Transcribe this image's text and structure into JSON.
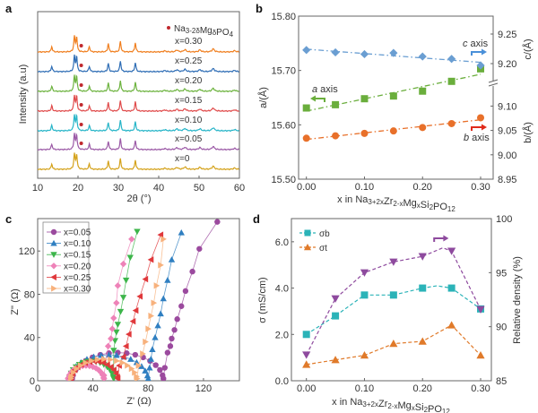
{
  "panels": {
    "a": "a",
    "b": "b",
    "c": "c",
    "d": "d"
  },
  "chart_data": [
    {
      "id": "a",
      "type": "line",
      "xlabel": "2θ (°)",
      "ylabel": "Intensity (a.u)",
      "xlim": [
        10,
        60
      ],
      "xticks": [
        10,
        20,
        30,
        40,
        50,
        60
      ],
      "legend_parts": [
        {
          "t": "Na"
        },
        {
          "t": "3-2δ",
          "sub": true
        },
        {
          "t": "Mg"
        },
        {
          "t": "δ",
          "sub": true
        },
        {
          "t": "PO"
        },
        {
          "t": "4",
          "sub": true
        }
      ],
      "impurity_marker_2theta": 20.8,
      "impurity_color": "#c0282d",
      "peaks": [
        [
          13.5,
          0.35
        ],
        [
          19.1,
          1.0
        ],
        [
          19.65,
          0.95
        ],
        [
          22.8,
          0.35
        ],
        [
          27.5,
          0.55
        ],
        [
          30.5,
          0.7
        ],
        [
          34.2,
          0.6
        ],
        [
          41.5,
          0.07
        ],
        [
          44.5,
          0.12
        ],
        [
          46.5,
          0.15
        ],
        [
          50.2,
          0.13
        ],
        [
          53.5,
          0.2
        ],
        [
          58.8,
          0.08
        ]
      ],
      "series": [
        {
          "name": "x=0.30",
          "color": "#f07f1f",
          "impurity": true
        },
        {
          "name": "x=0.25",
          "color": "#2e6db5",
          "impurity": true
        },
        {
          "name": "x=0.20",
          "color": "#6db33f",
          "impurity": true
        },
        {
          "name": "x=0.15",
          "color": "#e04b4b",
          "impurity": true
        },
        {
          "name": "x=0.10",
          "color": "#27b5c8",
          "impurity": true
        },
        {
          "name": "x=0.05",
          "color": "#9b59a6",
          "impurity": true
        },
        {
          "name": "x=0",
          "color": "#d4a21b",
          "impurity": false
        }
      ]
    },
    {
      "id": "b",
      "type": "scatter",
      "xlabel_parts": [
        {
          "t": "x in Na"
        },
        {
          "t": "3+2x",
          "sub": true
        },
        {
          "t": "Zr"
        },
        {
          "t": "2-x",
          "sub": true
        },
        {
          "t": "Mg"
        },
        {
          "t": "x",
          "sub": true
        },
        {
          "t": "Si"
        },
        {
          "t": "2",
          "sub": true
        },
        {
          "t": "PO"
        },
        {
          "t": "12",
          "sub": true
        }
      ],
      "ylabel_left": "a/(Å)",
      "ylabel_right_top": "c/(Å)",
      "ylabel_right_bottom": "b/(Å)",
      "x": [
        0,
        0.05,
        0.1,
        0.15,
        0.2,
        0.25,
        0.3
      ],
      "xticks": [
        "0.00",
        "0.10",
        "0.20",
        "0.30"
      ],
      "ylim_left": [
        15.5,
        15.8
      ],
      "yticks_left": [
        "15.50",
        "15.60",
        "15.70",
        "15.80"
      ],
      "yticks_right": [
        "8.95",
        "9.00",
        "9.05",
        "9.10",
        "9.20",
        "9.25"
      ],
      "series": [
        {
          "name": "a axis",
          "axis": "left",
          "color": "#6aae3c",
          "marker": "square",
          "values": [
            15.631,
            15.637,
            15.648,
            15.653,
            15.662,
            15.68,
            15.703
          ]
        },
        {
          "name": "b axis",
          "axis": "right-lower",
          "color": "#e8702a",
          "marker": "circle",
          "values": [
            9.034,
            9.039,
            9.044,
            9.049,
            9.056,
            9.064,
            9.076
          ]
        },
        {
          "name": "c axis",
          "axis": "right-upper",
          "color": "#6a9ed2",
          "marker": "diamond",
          "values": [
            9.223,
            9.219,
            9.216,
            9.218,
            9.212,
            9.208,
            9.197
          ]
        }
      ],
      "annotations": {
        "a": "a",
        "b": "b",
        "c": "c",
        "axis_word": " axis"
      },
      "arrow_colors": {
        "a": "#6aae3c",
        "b": "#e02a1a",
        "c": "#4a90d9"
      }
    },
    {
      "id": "c",
      "type": "scatter",
      "xlabel": "Z' (Ω)",
      "ylabel": "Z'' (Ω)",
      "xlim": [
        0,
        146
      ],
      "ylim": [
        0,
        150
      ],
      "xticks": [
        0,
        40,
        80,
        120
      ],
      "yticks": [
        0,
        40,
        80,
        120
      ],
      "series": [
        {
          "name": "x=0.05",
          "color": "#9b4a9e",
          "marker": "circle",
          "arc": [
            25,
            91,
            26
          ],
          "tail": [
            [
              92,
              12
            ],
            [
              94,
              26
            ],
            [
              96,
              32
            ],
            [
              97,
              39
            ],
            [
              99,
              47
            ],
            [
              101,
              57
            ],
            [
              104,
              69
            ],
            [
              107,
              83
            ],
            [
              112,
              101
            ],
            [
              117,
              122
            ],
            [
              130,
              147
            ]
          ]
        },
        {
          "name": "x=0.10",
          "color": "#2f7fc1",
          "marker": "tri-up",
          "arc": [
            23,
            80,
            24
          ],
          "tail": [
            [
              81,
              12
            ],
            [
              82,
              20
            ],
            [
              83,
              29
            ],
            [
              85,
              40
            ],
            [
              87,
              51
            ],
            [
              89,
              62
            ],
            [
              91,
              76
            ],
            [
              94,
              93
            ],
            [
              97,
              112
            ],
            [
              104,
              137
            ]
          ]
        },
        {
          "name": "x=0.15",
          "color": "#3cb54a",
          "marker": "tri-down",
          "arc": [
            23,
            55,
            18
          ],
          "tail": [
            [
              55,
              28
            ],
            [
              56,
              37
            ],
            [
              57,
              45
            ],
            [
              58,
              52
            ],
            [
              60,
              64
            ],
            [
              62,
              77
            ],
            [
              64,
              93
            ],
            [
              67,
              114
            ],
            [
              72,
              138
            ]
          ]
        },
        {
          "name": "x=0.20",
          "color": "#ee82b8",
          "marker": "diamond",
          "arc": [
            22,
            48,
            14
          ],
          "tail": [
            [
              48,
              5
            ],
            [
              51,
              32
            ],
            [
              53,
              39
            ],
            [
              54,
              48
            ],
            [
              55,
              58
            ],
            [
              57,
              72
            ],
            [
              58,
              88
            ],
            [
              62,
              108
            ],
            [
              68,
              131
            ]
          ]
        },
        {
          "name": "x=0.25",
          "color": "#e0383b",
          "marker": "tri-left",
          "arc": [
            24,
            58,
            18
          ],
          "tail": [
            [
              59,
              14
            ],
            [
              62,
              22
            ],
            [
              64,
              32
            ],
            [
              66,
              43
            ],
            [
              69,
              55
            ],
            [
              71,
              65
            ],
            [
              74,
              78
            ],
            [
              78,
              94
            ],
            [
              82,
              112
            ],
            [
              89,
              135
            ]
          ]
        },
        {
          "name": "x=0.30",
          "color": "#f7b17c",
          "marker": "tri-right",
          "arc": [
            24,
            72,
            20
          ],
          "tail": [
            [
              73,
              14
            ],
            [
              76,
              25
            ],
            [
              78,
              36
            ],
            [
              80,
              48
            ],
            [
              82,
              60
            ],
            [
              84,
              72
            ],
            [
              86,
              88
            ],
            [
              89,
              107
            ],
            [
              91,
              131
            ]
          ]
        }
      ]
    },
    {
      "id": "d",
      "type": "line",
      "xlabel_parts": [
        {
          "t": "x in Na"
        },
        {
          "t": "3+2x",
          "sub": true
        },
        {
          "t": "Zr"
        },
        {
          "t": "2-x",
          "sub": true
        },
        {
          "t": "Mg"
        },
        {
          "t": "x",
          "sub": true
        },
        {
          "t": "Si"
        },
        {
          "t": "2",
          "sub": true
        },
        {
          "t": "PO"
        },
        {
          "t": "12",
          "sub": true
        }
      ],
      "ylabel_left": "σ (mS/cm)",
      "ylabel_right": "Relative density (%)",
      "x": [
        0,
        0.05,
        0.1,
        0.15,
        0.2,
        0.25,
        0.3
      ],
      "xticks": [
        "0.00",
        "0.10",
        "0.20",
        "0.30"
      ],
      "ylim_left": [
        0,
        7
      ],
      "yticks_left": [
        "0.0",
        "2.0",
        "4.0",
        "6.0"
      ],
      "ylim_right": [
        85,
        100
      ],
      "yticks_right": [
        "85",
        "90",
        "95",
        "100"
      ],
      "series": [
        {
          "name": "σb",
          "axis": "left",
          "color": "#2bb3b8",
          "marker": "square",
          "values": [
            2.0,
            2.8,
            3.7,
            3.7,
            4.0,
            4.0,
            3.1
          ]
        },
        {
          "name": "σt",
          "axis": "left",
          "color": "#e07a2a",
          "marker": "tri-up",
          "values": [
            0.7,
            0.9,
            1.1,
            1.6,
            1.7,
            2.4,
            1.1
          ]
        },
        {
          "name": "Relative density",
          "axis": "right",
          "color": "#8e4a9e",
          "marker": "tri-down",
          "values": [
            87.4,
            92.6,
            95.0,
            96.0,
            96.5,
            97.0,
            91.6
          ],
          "in_legend": false
        }
      ]
    }
  ]
}
